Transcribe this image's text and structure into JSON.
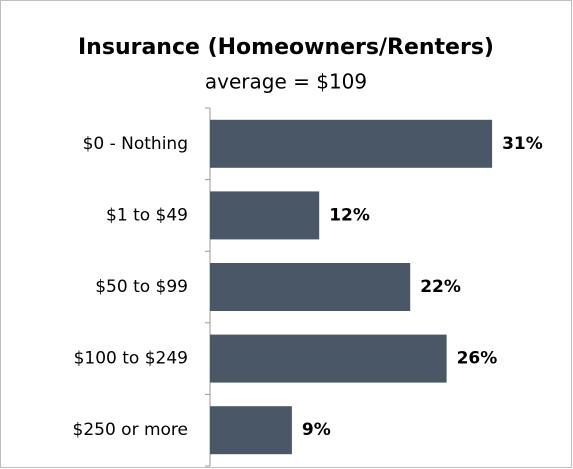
{
  "chart_data": {
    "type": "bar",
    "orientation": "horizontal",
    "title": "Insurance (Homeowners/Renters)",
    "subtitle": "average = $109",
    "categories": [
      "$0 - Nothing",
      "$1 to $49",
      "$50 to $99",
      "$100 to $249",
      "$250 or more"
    ],
    "values": [
      31,
      12,
      22,
      26,
      9
    ],
    "value_labels": [
      "31%",
      "12%",
      "22%",
      "26%",
      "9%"
    ],
    "color": "#4a5766"
  }
}
